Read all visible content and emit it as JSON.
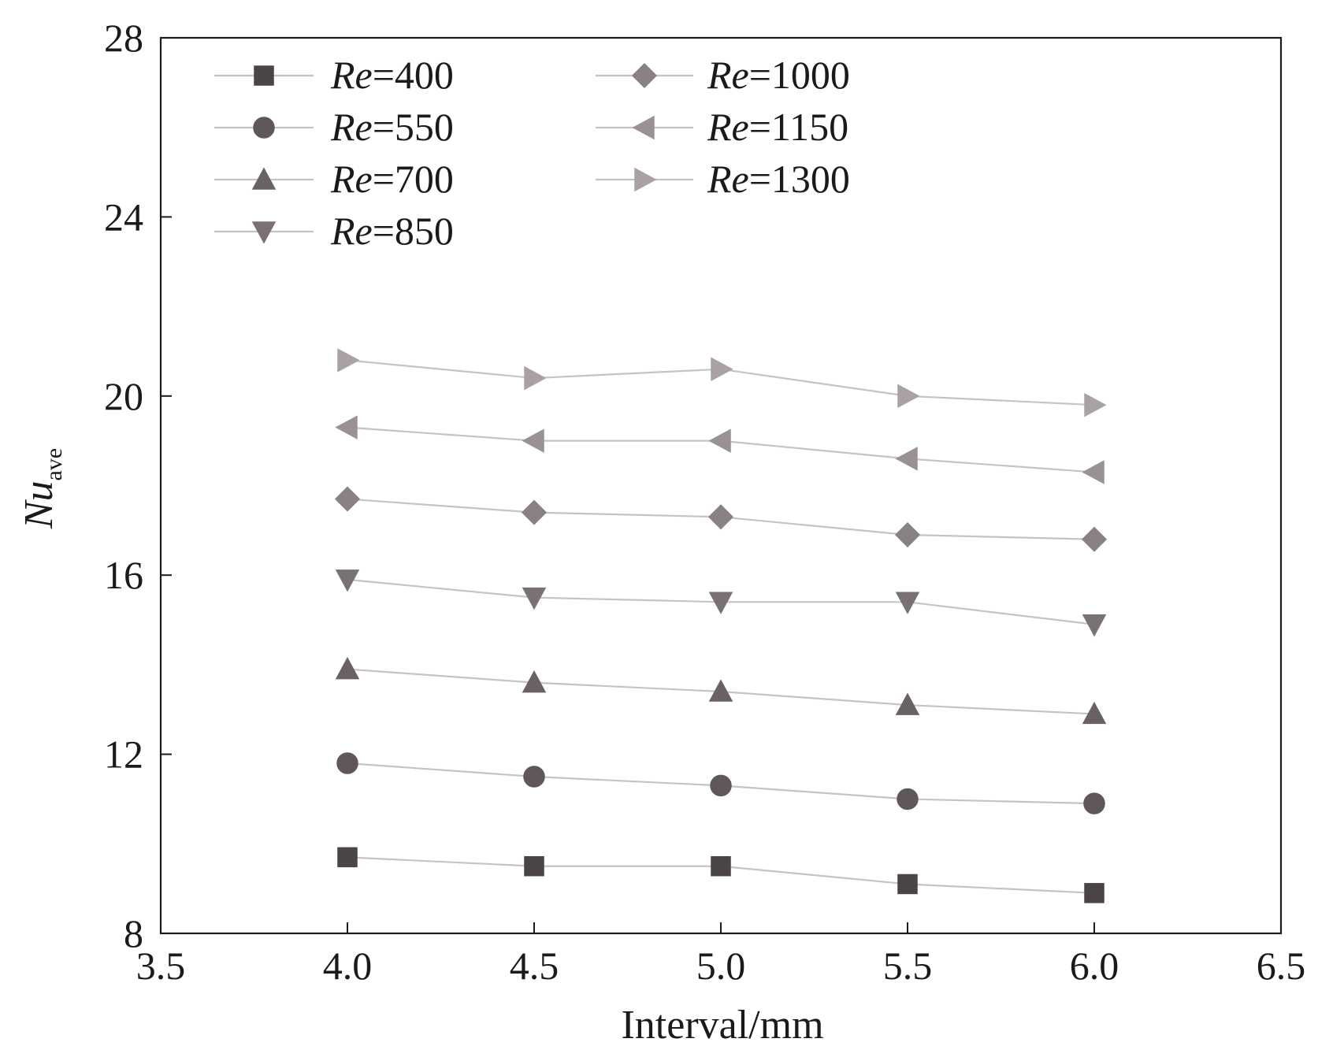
{
  "chart_data": {
    "type": "line",
    "title": "",
    "xlabel": "Interval/mm",
    "ylabel": {
      "main": "Nu",
      "sub": "ave"
    },
    "xlim": [
      3.5,
      6.5
    ],
    "ylim": [
      8,
      28
    ],
    "xticks": [
      "3.5",
      "4.0",
      "4.5",
      "5.0",
      "5.5",
      "6.0",
      "6.5"
    ],
    "yticks": [
      "8",
      "12",
      "16",
      "20",
      "24",
      "28"
    ],
    "x": [
      4.0,
      4.5,
      5.0,
      5.5,
      6.0
    ],
    "legend_position": "top-left",
    "series": [
      {
        "name": "Re=400",
        "re_var": "Re",
        "re_val": "=400",
        "marker": "square",
        "color": "#4a4444",
        "values": [
          9.7,
          9.5,
          9.5,
          9.1,
          8.9
        ]
      },
      {
        "name": "Re=550",
        "re_var": "Re",
        "re_val": "=550",
        "marker": "circle",
        "color": "#605858",
        "values": [
          11.8,
          11.5,
          11.3,
          11.0,
          10.9
        ]
      },
      {
        "name": "Re=700",
        "re_var": "Re",
        "re_val": "=700",
        "marker": "triangle-up",
        "color": "#6a6262",
        "values": [
          13.9,
          13.6,
          13.4,
          13.1,
          12.9
        ]
      },
      {
        "name": "Re=850",
        "re_var": "Re",
        "re_val": "=850",
        "marker": "triangle-down",
        "color": "#7a7272",
        "values": [
          15.9,
          15.5,
          15.4,
          15.4,
          14.9
        ]
      },
      {
        "name": "Re=1000",
        "re_var": "Re",
        "re_val": "=1000",
        "marker": "diamond",
        "color": "#8a8282",
        "values": [
          17.7,
          17.4,
          17.3,
          16.9,
          16.8
        ]
      },
      {
        "name": "Re=1150",
        "re_var": "Re",
        "re_val": "=1150",
        "marker": "triangle-left",
        "color": "#9a9292",
        "values": [
          19.3,
          19.0,
          19.0,
          18.6,
          18.3
        ]
      },
      {
        "name": "Re=1300",
        "re_var": "Re",
        "re_val": "=1300",
        "marker": "triangle-right",
        "color": "#aaa2a2",
        "values": [
          20.8,
          20.4,
          20.6,
          20.0,
          19.8
        ]
      }
    ]
  }
}
